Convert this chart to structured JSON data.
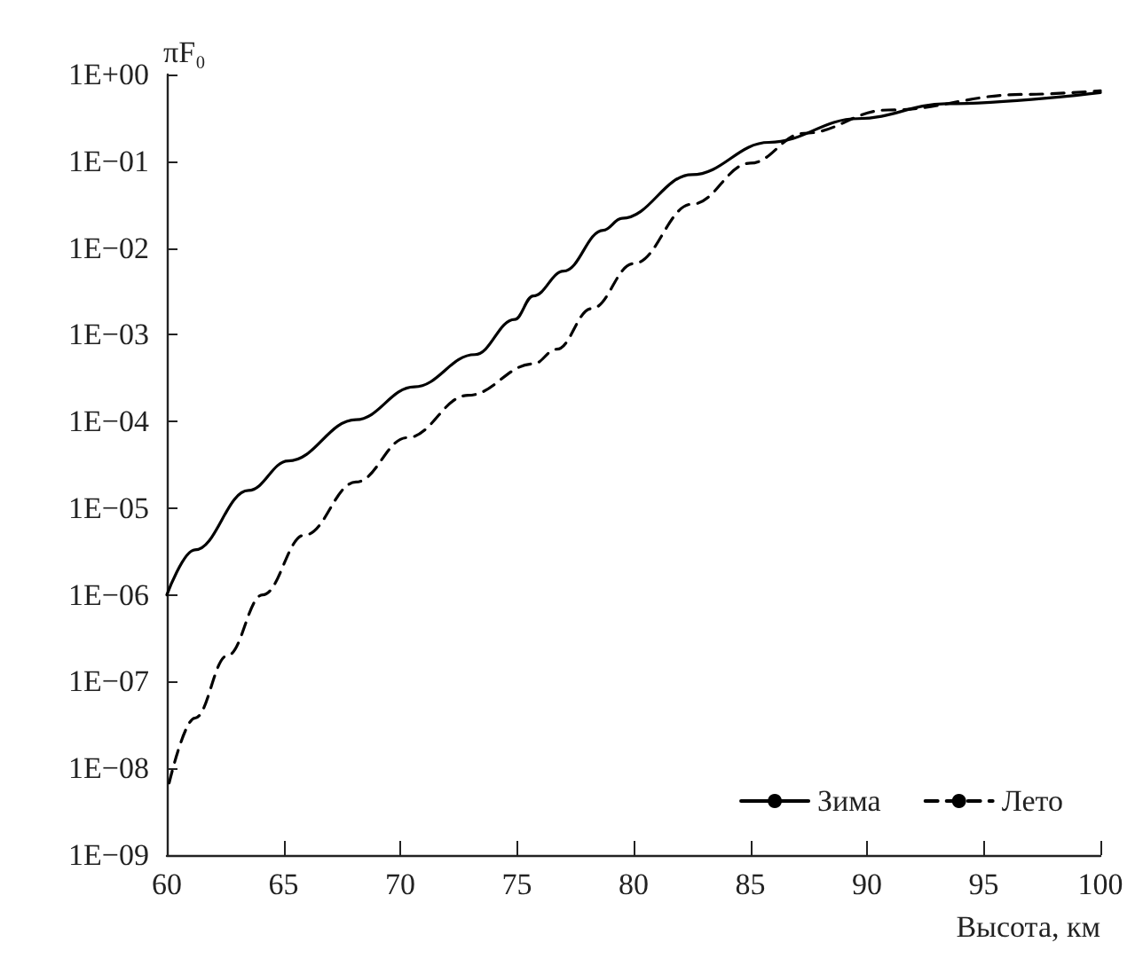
{
  "chart_data": {
    "type": "line",
    "xlabel": "Высота, км",
    "ylabel": "πF₀",
    "log": "y",
    "grid": false,
    "legend": "bottom right",
    "marker": "none",
    "xlim": [
      60,
      100
    ],
    "xticks": [
      60,
      65,
      70,
      75,
      80,
      85,
      90,
      95,
      100
    ],
    "ylim": [
      1e-09,
      1
    ],
    "yticks": [
      {
        "value": 1,
        "label": "1E+00"
      },
      {
        "value": 0.1,
        "label": "1E−01"
      },
      {
        "value": 0.01,
        "label": "1E−02"
      },
      {
        "value": 0.001,
        "label": "1E−03"
      },
      {
        "value": 0.0001,
        "label": "1E−04"
      },
      {
        "value": 1e-05,
        "label": "1E−05"
      },
      {
        "value": 1e-06,
        "label": "1E−06"
      },
      {
        "value": 1e-07,
        "label": "1E−07"
      },
      {
        "value": 1e-08,
        "label": "1E−08"
      },
      {
        "value": 1e-09,
        "label": "1E−09"
      }
    ],
    "series": [
      {
        "name": "Зима",
        "color": "#000000",
        "line_style": "solid",
        "x": [
          60,
          61.2,
          63.5,
          65.2,
          68.1,
          70.6,
          73.2,
          74.9,
          75.7,
          77.0,
          78.7,
          79.5,
          82.5,
          85.8,
          89.6,
          93.4,
          100
        ],
        "values": [
          1e-06,
          3.3e-06,
          1.6e-05,
          3.5e-05,
          0.000105,
          0.00025,
          0.00059,
          0.0015,
          0.0028,
          0.0054,
          0.016,
          0.022,
          0.07,
          0.165,
          0.31,
          0.46,
          0.62
        ]
      },
      {
        "name": "Лето",
        "color": "#000000",
        "line_style": "dashed",
        "x": [
          60.1,
          61.2,
          62.6,
          64.1,
          65.9,
          68.1,
          70.3,
          72.9,
          75.7,
          76.7,
          78.2,
          80,
          82.5,
          85,
          87.3,
          90.9,
          96.7,
          100
        ],
        "values": [
          6.8e-09,
          3.8e-08,
          2e-07,
          1e-06,
          4.9e-06,
          2e-05,
          6.5e-05,
          0.0002,
          0.00046,
          0.00068,
          0.002,
          0.0066,
          0.032,
          0.095,
          0.21,
          0.39,
          0.59,
          0.65
        ]
      }
    ]
  }
}
